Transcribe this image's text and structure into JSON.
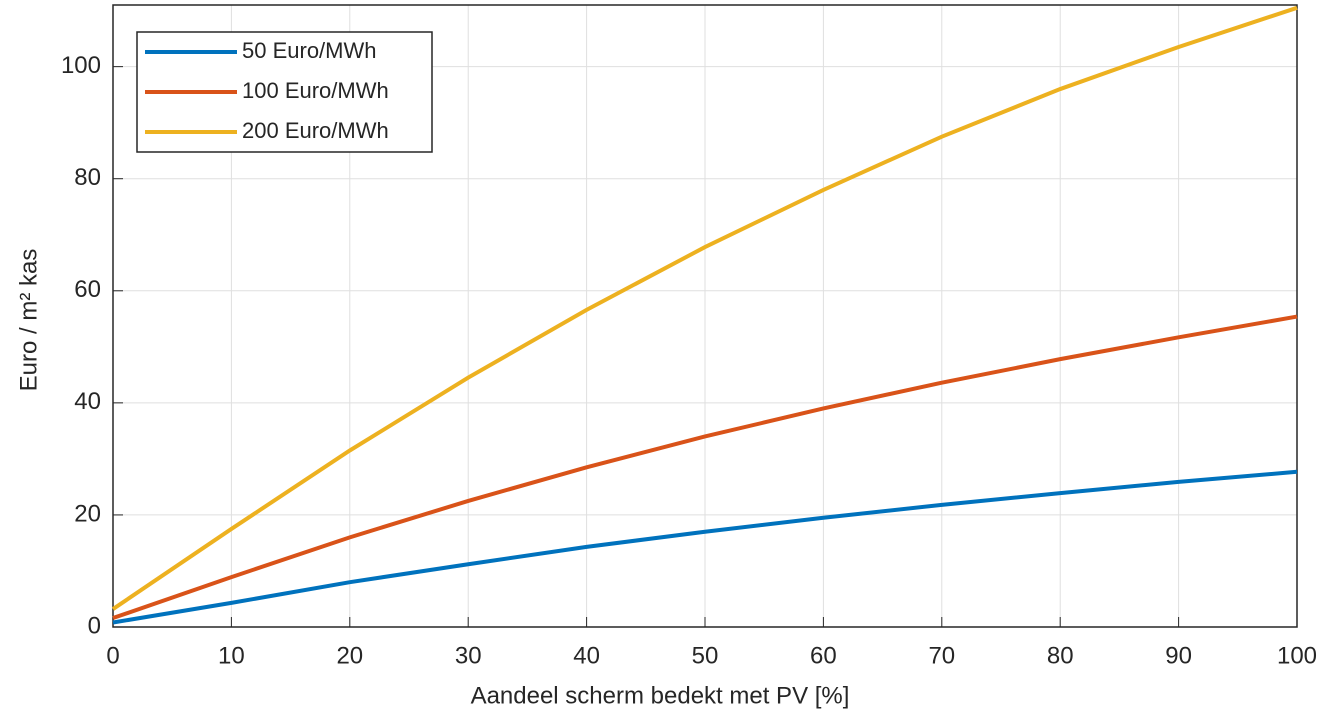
{
  "chart_data": {
    "type": "line",
    "xlabel": "Aandeel scherm bedekt met PV [%]",
    "ylabel": "Euro / m² kas",
    "x": [
      0,
      10,
      20,
      30,
      40,
      50,
      60,
      70,
      80,
      90,
      100
    ],
    "series": [
      {
        "name": "50 Euro/MWh",
        "color": "#0072bd",
        "values": [
          0.8,
          4.3,
          8,
          11.2,
          14.3,
          17,
          19.5,
          21.8,
          23.9,
          25.9,
          27.7
        ]
      },
      {
        "name": "100 Euro/MWh",
        "color": "#d95319",
        "values": [
          1.6,
          8.9,
          16,
          22.5,
          28.5,
          34,
          39,
          43.6,
          47.8,
          51.7,
          55.4
        ]
      },
      {
        "name": "200 Euro/MWh",
        "color": "#edb120",
        "values": [
          3.2,
          17.5,
          31.5,
          44.5,
          56.6,
          67.8,
          78,
          87.5,
          96,
          103.5,
          110.5
        ]
      }
    ],
    "xlim": [
      0,
      100
    ],
    "xticks": [
      0,
      10,
      20,
      30,
      40,
      50,
      60,
      70,
      80,
      90,
      100
    ],
    "ylim": [
      0,
      111
    ],
    "yticks": [
      0,
      20,
      40,
      60,
      80,
      100
    ],
    "grid": true,
    "legend": "upper-left"
  }
}
